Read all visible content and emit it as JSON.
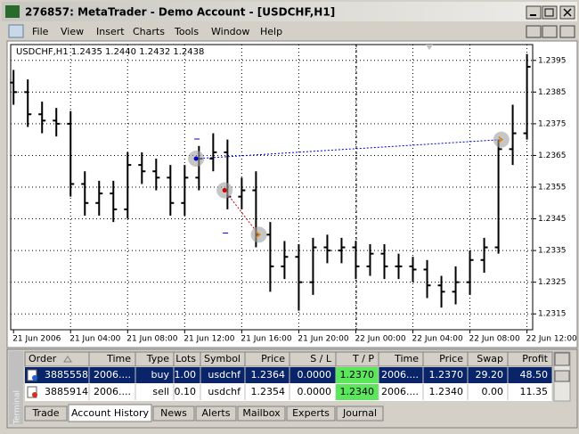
{
  "window": {
    "title": "276857: MetaTrader - Demo Account - [USDCHF,H1]"
  },
  "menu": [
    "File",
    "View",
    "Insert",
    "Charts",
    "Tools",
    "Window",
    "Help"
  ],
  "chart_data": {
    "type": "ohlc",
    "title": "USDCHF,H1  1.2435 1.2440 1.2432 1.2438",
    "color": "#000000",
    "grid": true,
    "open": [
      1.2388,
      1.2385,
      1.2378,
      1.2376,
      1.2375,
      1.2356,
      1.235,
      1.2353,
      1.2348,
      1.2362,
      1.236,
      1.2358,
      1.235,
      1.2358,
      1.2364,
      1.2366,
      1.2352,
      1.2354,
      1.234,
      1.233,
      1.2333,
      1.2325,
      1.2336,
      1.2335,
      1.2336,
      1.233,
      1.2334,
      1.233,
      1.233,
      1.2329,
      1.2324,
      1.2322,
      1.2325,
      1.2332,
      1.2336,
      1.2367,
      1.2372
    ],
    "high": [
      1.2392,
      1.2389,
      1.2382,
      1.238,
      1.2379,
      1.236,
      1.2357,
      1.2357,
      1.2366,
      1.2366,
      1.2364,
      1.2362,
      1.2362,
      1.2368,
      1.2372,
      1.237,
      1.2358,
      1.236,
      1.2344,
      1.2338,
      1.2337,
      1.2339,
      1.234,
      1.2339,
      1.2338,
      1.2337,
      1.2337,
      1.2334,
      1.2333,
      1.2332,
      1.2327,
      1.233,
      1.2335,
      1.2339,
      1.237,
      1.2381,
      1.2397
    ],
    "low": [
      1.2381,
      1.2374,
      1.2372,
      1.2371,
      1.2352,
      1.2346,
      1.2346,
      1.2344,
      1.2345,
      1.2356,
      1.2354,
      1.2346,
      1.2346,
      1.2354,
      1.236,
      1.2348,
      1.2348,
      1.2336,
      1.2322,
      1.2326,
      1.2316,
      1.2321,
      1.2331,
      1.2331,
      1.2326,
      1.2327,
      1.2326,
      1.2326,
      1.2325,
      1.232,
      1.2317,
      1.2318,
      1.2321,
      1.2328,
      1.2334,
      1.2362,
      1.237
    ],
    "close": [
      1.2385,
      1.2378,
      1.2376,
      1.2375,
      1.2356,
      1.235,
      1.2353,
      1.2348,
      1.2362,
      1.236,
      1.2358,
      1.235,
      1.2358,
      1.2364,
      1.2366,
      1.2352,
      1.2354,
      1.234,
      1.233,
      1.2333,
      1.2325,
      1.2336,
      1.2335,
      1.2336,
      1.233,
      1.2334,
      1.233,
      1.233,
      1.2329,
      1.2324,
      1.2322,
      1.2325,
      1.2332,
      1.2336,
      1.2367,
      1.2372,
      1.2393
    ],
    "xlim": [
      -0.2,
      36.4
    ],
    "xticks": [
      {
        "value": 0,
        "label": "21 Jun 2006"
      },
      {
        "value": 4,
        "label": "21 Jun 04:00"
      },
      {
        "value": 8,
        "label": "21 Jun 08:00"
      },
      {
        "value": 12,
        "label": "21 Jun 12:00"
      },
      {
        "value": 16,
        "label": "21 Jun 16:00"
      },
      {
        "value": 20,
        "label": "21 Jun 20:00"
      },
      {
        "value": 24,
        "label": "22 Jun 00:00"
      },
      {
        "value": 28,
        "label": "22 Jun 04:00"
      },
      {
        "value": 32,
        "label": "22 Jun 08:00"
      },
      {
        "value": 36,
        "label": "22 Jun 12:00"
      }
    ],
    "ylim": [
      1.231,
      1.24
    ],
    "yticks": [
      1.2315,
      1.2325,
      1.2335,
      1.2345,
      1.2355,
      1.2365,
      1.2375,
      1.2385,
      1.2395
    ]
  },
  "terminal": {
    "side_label": "Terminal",
    "columns": [
      "Order",
      "Time",
      "Type",
      "Lots",
      "Symbol",
      "Price",
      "S / L",
      "T / P",
      "Time",
      "Price",
      "Swap",
      "Profit"
    ],
    "rows": [
      [
        "3885558",
        "2006....",
        "buy",
        "1.00",
        "usdchf",
        "1.2364",
        "0.0000",
        "1.2370",
        "2006....",
        "1.2370",
        "29.20",
        "48.50"
      ],
      [
        "3885914",
        "2006....",
        "sell",
        "0.10",
        "usdchf",
        "1.2354",
        "0.0000",
        "1.2340",
        "2006....",
        "1.2340",
        "0.00",
        "11.35"
      ]
    ],
    "tabs": [
      "Trade",
      "Account History",
      "News",
      "Alerts",
      "Mailbox",
      "Experts",
      "Journal"
    ]
  }
}
